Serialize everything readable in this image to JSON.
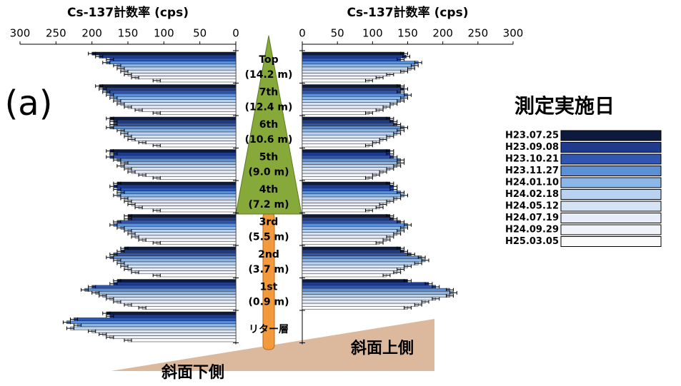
{
  "panel_label": "(a)",
  "legend_title": "測定実施日",
  "slope_labels": [
    "斜面下側",
    "斜面上側"
  ],
  "chart_data": [
    {
      "type": "bar",
      "title": "Cs-137計数率 (cps)",
      "orientation": "horizontal",
      "reversed": true,
      "categories": [
        "Top",
        "7th",
        "6th",
        "5th",
        "4th",
        "3rd",
        "2nd",
        "1st",
        "リター層"
      ],
      "heights": [
        "(14.2 m)",
        "(12.4 m)",
        "(10.6 m)",
        "(9.0 m)",
        "(7.2 m)",
        "(5.5 m)",
        "(3.7 m)",
        "(0.9 m)",
        null
      ],
      "xlim": [
        0,
        300
      ],
      "xticks": [
        300,
        250,
        200,
        150,
        100,
        50,
        0
      ],
      "series": [
        {
          "name": "H23.07.25",
          "color": "#0e1a3c",
          "error": 5,
          "values": [
            200,
            190,
            175,
            175,
            165,
            150,
            155,
            165,
            180
          ]
        },
        {
          "name": "H23.09.08",
          "color": "#1f3b8c",
          "error": 5,
          "values": [
            190,
            185,
            170,
            170,
            170,
            150,
            160,
            170,
            175
          ]
        },
        {
          "name": "H23.10.21",
          "color": "#3056b2",
          "error": 5,
          "values": [
            175,
            180,
            170,
            175,
            165,
            165,
            170,
            200,
            225
          ]
        },
        {
          "name": "H23.11.27",
          "color": "#5b8fd6",
          "error": 5,
          "values": [
            180,
            175,
            175,
            165,
            160,
            170,
            175,
            210,
            235
          ]
        },
        {
          "name": "H24.01.10",
          "color": "#8cb6e8",
          "error": 5,
          "values": [
            165,
            170,
            160,
            155,
            165,
            160,
            165,
            195,
            220
          ]
        },
        {
          "name": "H24.02.18",
          "color": "#b8d2f0",
          "error": 5,
          "values": [
            160,
            165,
            155,
            160,
            155,
            150,
            160,
            185,
            230
          ]
        },
        {
          "name": "H24.05.12",
          "color": "#d5e3f5",
          "error": 5,
          "values": [
            155,
            160,
            150,
            150,
            150,
            145,
            155,
            175,
            200
          ]
        },
        {
          "name": "H24.07.19",
          "color": "#e6edf8",
          "error": 5,
          "values": [
            150,
            150,
            145,
            145,
            145,
            140,
            150,
            165,
            185
          ]
        },
        {
          "name": "H24.09.29",
          "color": "#f0f3fa",
          "error": 5,
          "values": [
            140,
            135,
            130,
            130,
            135,
            130,
            140,
            150,
            175
          ]
        },
        {
          "name": "H25.03.05",
          "color": "#fbfbfb",
          "error": 5,
          "values": [
            110,
            110,
            110,
            110,
            110,
            110,
            110,
            130,
            150
          ]
        }
      ]
    },
    {
      "type": "bar",
      "title": "Cs-137計数率 (cps)",
      "orientation": "horizontal",
      "reversed": false,
      "xlim": [
        0,
        300
      ],
      "xticks": [
        0,
        50,
        100,
        150,
        200,
        250,
        300
      ],
      "series": [
        {
          "error": 5,
          "values": [
            145,
            140,
            125,
            125,
            125,
            125,
            140,
            150,
            null
          ]
        },
        {
          "error": 5,
          "values": [
            148,
            145,
            130,
            125,
            130,
            130,
            145,
            180,
            null
          ]
        },
        {
          "error": 5,
          "values": [
            140,
            140,
            135,
            130,
            130,
            140,
            155,
            190,
            null
          ]
        },
        {
          "error": 5,
          "values": [
            165,
            150,
            145,
            140,
            140,
            150,
            170,
            210,
            null
          ]
        },
        {
          "error": 5,
          "values": [
            160,
            145,
            140,
            140,
            145,
            145,
            175,
            215,
            null
          ]
        },
        {
          "error": 5,
          "values": [
            155,
            140,
            135,
            135,
            135,
            140,
            165,
            210,
            null
          ]
        },
        {
          "error": 5,
          "values": [
            145,
            130,
            125,
            125,
            125,
            135,
            150,
            190,
            null
          ]
        },
        {
          "error": 5,
          "values": [
            125,
            120,
            115,
            115,
            115,
            125,
            140,
            175,
            null
          ]
        },
        {
          "error": 5,
          "values": [
            110,
            110,
            105,
            105,
            110,
            120,
            135,
            165,
            null
          ]
        },
        {
          "error": 5,
          "values": [
            95,
            95,
            95,
            95,
            95,
            110,
            120,
            150,
            null
          ]
        }
      ]
    }
  ]
}
